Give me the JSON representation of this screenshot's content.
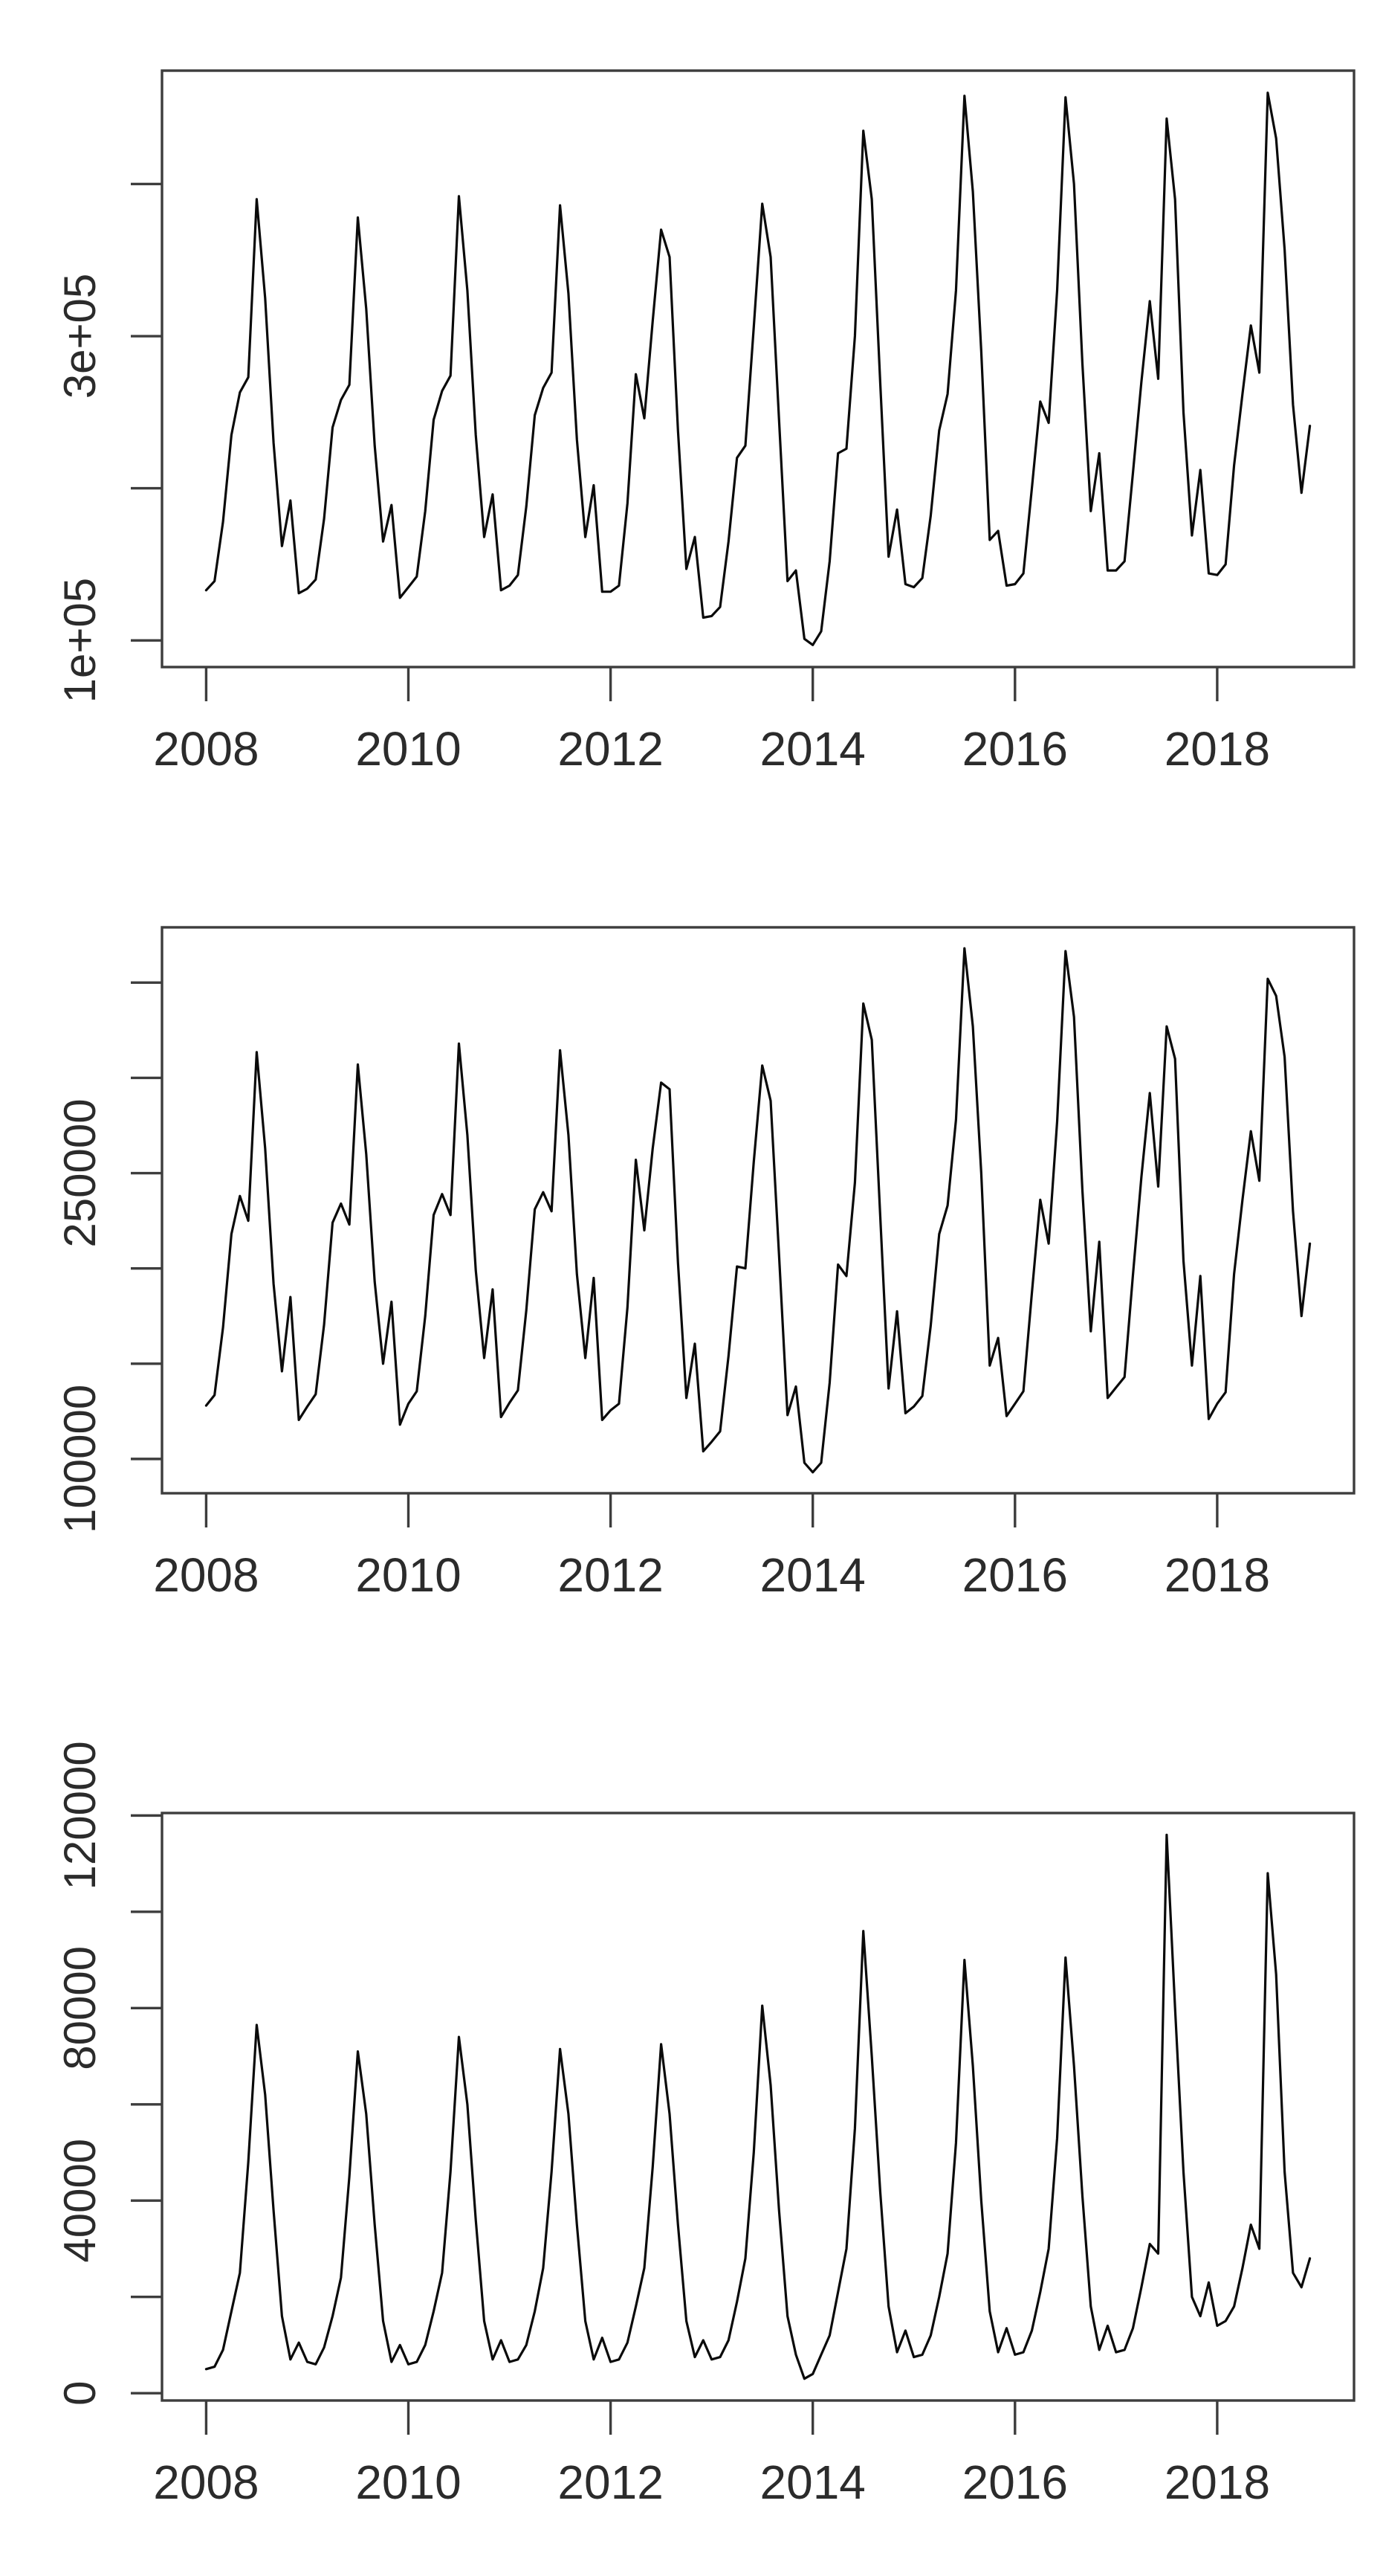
{
  "page": {
    "background": "#ffffff",
    "description_colors": {
      "line": "#0a0a0a",
      "axis": "#3d3d3d",
      "tick_label": "#2b2b2b"
    }
  },
  "chart_data": [
    {
      "id": "top-plot",
      "type": "line",
      "title": "",
      "xlabel": "",
      "ylabel": "",
      "grid": false,
      "legend": "none",
      "frequency": "monthly",
      "x_start": 2008.0,
      "x_end": 2018.9167,
      "xlim": [
        2007.5633,
        2019.3533
      ],
      "ylim": [
        82480,
        474520
      ],
      "x_ticks": {
        "values": [
          2008,
          2010,
          2012,
          2014,
          2016,
          2018
        ],
        "labels": [
          "2008",
          "2010",
          "2012",
          "2014",
          "2016",
          "2018"
        ]
      },
      "y_ticks": {
        "values": [
          100000,
          200000,
          300000,
          400000
        ],
        "labels": [
          "1e+05",
          "",
          "3e+05",
          ""
        ]
      },
      "series": [
        {
          "name": "monthly-total",
          "values": [
            133000,
            139000,
            178000,
            235000,
            263000,
            273000,
            390000,
            325000,
            230000,
            162000,
            192000,
            131000,
            134000,
            140000,
            180000,
            240000,
            258000,
            268000,
            378000,
            318000,
            228000,
            165000,
            189000,
            128000,
            135000,
            142000,
            185000,
            245000,
            264000,
            274000,
            392000,
            330000,
            235000,
            168000,
            196000,
            133000,
            136000,
            143000,
            188000,
            248000,
            266000,
            276000,
            386000,
            328000,
            232000,
            168000,
            202000,
            132000,
            132000,
            136000,
            190000,
            275000,
            246000,
            310000,
            370000,
            352000,
            238000,
            147000,
            168000,
            115000,
            116000,
            122000,
            165000,
            220000,
            228000,
            306000,
            387000,
            352000,
            245000,
            139000,
            146000,
            101000,
            97000,
            106000,
            152000,
            223000,
            226000,
            300000,
            435000,
            390000,
            270000,
            155000,
            186000,
            137000,
            135000,
            141000,
            182000,
            238000,
            262000,
            330000,
            458000,
            395000,
            290000,
            166000,
            172000,
            136000,
            137000,
            144000,
            200000,
            257000,
            243000,
            330000,
            457000,
            400000,
            282000,
            185000,
            223000,
            146000,
            146000,
            152000,
            210000,
            270000,
            323000,
            272000,
            443000,
            390000,
            250000,
            169000,
            212000,
            144000,
            143000,
            150000,
            215000,
            262000,
            307000,
            276000,
            460000,
            430000,
            357000,
            255000,
            197000,
            241000
          ]
        }
      ]
    },
    {
      "id": "middle-plot",
      "type": "line",
      "title": "",
      "xlabel": "",
      "ylabel": "",
      "grid": false,
      "legend": "none",
      "frequency": "monthly",
      "x_start": 2008.0,
      "x_end": 2018.9167,
      "xlim": [
        2007.5633,
        2019.3533
      ],
      "ylim": [
        82000,
        379000
      ],
      "x_ticks": {
        "values": [
          2008,
          2010,
          2012,
          2014,
          2016,
          2018
        ],
        "labels": [
          "2008",
          "2010",
          "2012",
          "2014",
          "2016",
          "2018"
        ]
      },
      "y_ticks": {
        "values": [
          100000,
          150000,
          200000,
          250000,
          300000,
          350000
        ],
        "labels": [
          "100000",
          "",
          "",
          "250000",
          "",
          ""
        ]
      },
      "series": [
        {
          "name": "monthly-component-large",
          "values": [
            128000,
            133500,
            169000,
            218000,
            238000,
            225000,
            313500,
            263000,
            192000,
            146000,
            185000,
            120500,
            127500,
            134000,
            170500,
            224000,
            234000,
            223000,
            307000,
            260000,
            193000,
            150000,
            182500,
            118000,
            129000,
            135500,
            175000,
            228000,
            239000,
            228000,
            318000,
            270000,
            199000,
            153000,
            189000,
            122000,
            129500,
            136000,
            178000,
            231000,
            240000,
            230000,
            314500,
            270000,
            197000,
            153000,
            195000,
            120500,
            125500,
            129000,
            179500,
            257000,
            220000,
            263000,
            297500,
            294000,
            203000,
            132000,
            160500,
            104000,
            109000,
            114500,
            154000,
            201000,
            200000,
            256000,
            306500,
            288000,
            207000,
            123000,
            138000,
            98000,
            93000,
            98000,
            140000,
            202000,
            196000,
            245000,
            339000,
            320000,
            228000,
            137000,
            177500,
            124000,
            127500,
            133000,
            170000,
            218000,
            233000,
            278000,
            368000,
            327000,
            250000,
            149000,
            163500,
            122500,
            129000,
            135500,
            187000,
            236000,
            213000,
            277000,
            366500,
            332000,
            241000,
            167000,
            214000,
            132000,
            137500,
            143000,
            196500,
            248000,
            292000,
            243000,
            327000,
            310000,
            204000,
            149000,
            196000,
            121000,
            129000,
            135000,
            197000,
            236000,
            272000,
            246000,
            352000,
            343000,
            311000,
            230000,
            175000,
            213000
          ]
        }
      ]
    },
    {
      "id": "bottom-plot",
      "type": "line",
      "title": "",
      "xlabel": "",
      "ylabel": "",
      "grid": false,
      "legend": "none",
      "frequency": "monthly",
      "x_start": 2008.0,
      "x_end": 2018.9167,
      "xlim": [
        2007.5633,
        2019.3533
      ],
      "ylim": [
        -1520,
        120520
      ],
      "x_ticks": {
        "values": [
          2008,
          2010,
          2012,
          2014,
          2016,
          2018
        ],
        "labels": [
          "2008",
          "2010",
          "2012",
          "2014",
          "2016",
          "2018"
        ]
      },
      "y_ticks": {
        "values": [
          0,
          20000,
          40000,
          60000,
          80000,
          100000,
          120000
        ],
        "labels": [
          "0",
          "",
          "40000",
          "",
          "80000",
          "",
          "120000"
        ]
      },
      "series": [
        {
          "name": "monthly-component-small",
          "values": [
            5000,
            5500,
            9000,
            17000,
            25000,
            48000,
            76500,
            62000,
            38000,
            16000,
            7000,
            10500,
            6500,
            6000,
            9500,
            16000,
            24000,
            45000,
            71000,
            58000,
            35000,
            15000,
            6500,
            10000,
            6000,
            6500,
            10000,
            17000,
            25000,
            46000,
            74000,
            60000,
            36000,
            15000,
            7000,
            11000,
            6500,
            7000,
            10000,
            17000,
            26000,
            46000,
            71500,
            58000,
            35000,
            15000,
            7000,
            11500,
            6500,
            7000,
            10500,
            18000,
            26000,
            47000,
            72500,
            58000,
            35000,
            15000,
            7500,
            11000,
            7000,
            7500,
            11000,
            19000,
            28000,
            50000,
            80500,
            64000,
            38000,
            16000,
            8000,
            3000,
            4000,
            8000,
            12000,
            21000,
            30000,
            55000,
            96000,
            70000,
            42000,
            18000,
            8500,
            13000,
            7500,
            8000,
            12000,
            20000,
            29000,
            52000,
            90000,
            68000,
            40000,
            17000,
            8500,
            13500,
            8000,
            8500,
            13000,
            21000,
            30000,
            53000,
            90500,
            68000,
            41000,
            18000,
            9000,
            14000,
            8500,
            9000,
            13500,
            22000,
            31000,
            29000,
            116000,
            80000,
            46000,
            20000,
            16000,
            23000,
            14000,
            15000,
            18000,
            26000,
            35000,
            30000,
            108000,
            87000,
            46000,
            25000,
            22000,
            28000
          ]
        }
      ]
    }
  ]
}
